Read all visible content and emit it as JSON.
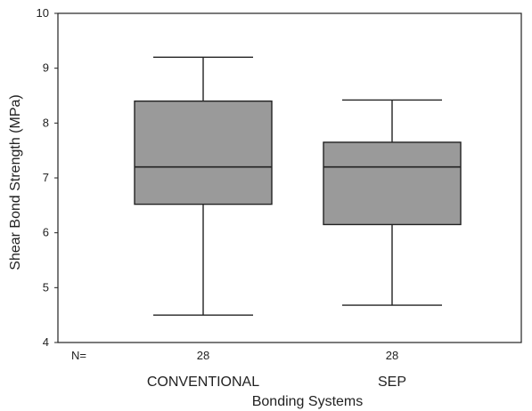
{
  "chart_data": {
    "type": "box",
    "title": "",
    "xlabel": "Bonding Systems",
    "ylabel": "Shear Bond Strength (MPa)",
    "ylim": [
      4,
      10
    ],
    "yticks": [
      "4",
      "5",
      "6",
      "7",
      "8",
      "9",
      "10"
    ],
    "grid": false,
    "n_label": "N=",
    "categories": [
      "CONVENTIONAL",
      "SEP"
    ],
    "boxes": [
      {
        "category": "CONVENTIONAL",
        "n": "28",
        "min": 4.5,
        "q1": 6.52,
        "median": 7.2,
        "q3": 8.4,
        "max": 9.2
      },
      {
        "category": "SEP",
        "n": "28",
        "min": 4.68,
        "q1": 6.15,
        "median": 7.2,
        "q3": 7.65,
        "max": 8.42
      }
    ],
    "colors": {
      "box_fill": "#9a9a9a",
      "stroke": "#222222"
    }
  }
}
